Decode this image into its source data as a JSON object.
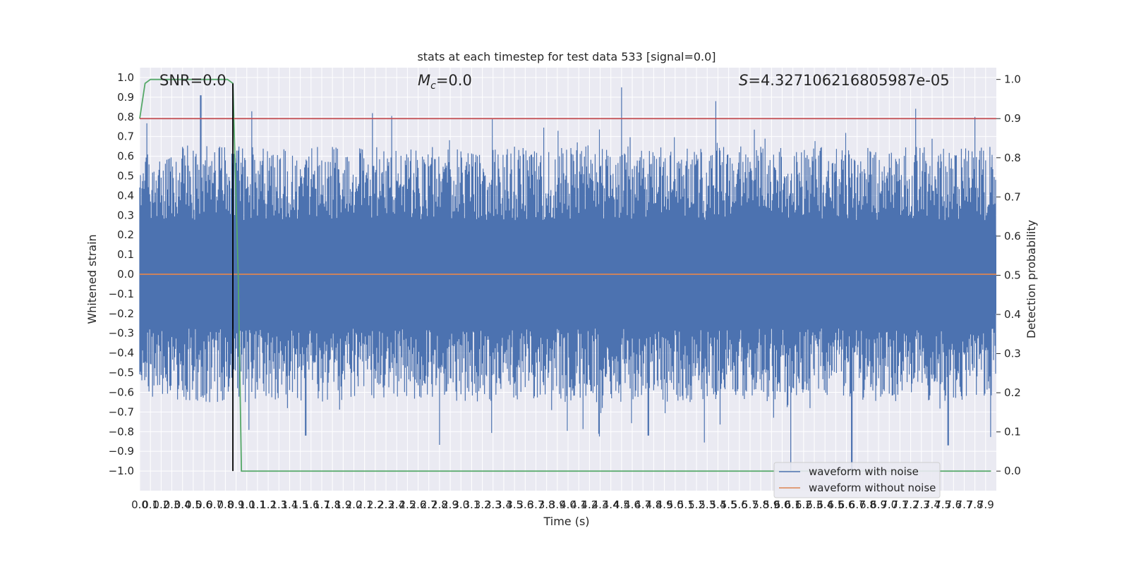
{
  "chart_data": {
    "type": "line",
    "title": "stats at each timestep for test data 533 [signal=0.0]",
    "xlabel": "Time (s)",
    "ylabel": "Whitened strain",
    "ylabel_right": "Detection probability",
    "xlim": [
      0,
      8.0
    ],
    "ylim": [
      -1.1,
      1.05
    ],
    "ylim_right": [
      -0.05,
      1.03
    ],
    "x_ticks": [
      0.0,
      0.1,
      0.2,
      0.3,
      0.4,
      0.5,
      0.6,
      0.7,
      0.8,
      0.9,
      1.0,
      1.1,
      1.2,
      1.3,
      1.4,
      1.5,
      1.6,
      1.7,
      1.8,
      1.9,
      2.0,
      2.1,
      2.2,
      2.3,
      2.4,
      2.5,
      2.6,
      2.7,
      2.8,
      2.9,
      3.0,
      3.1,
      3.2,
      3.3,
      3.4,
      3.5,
      3.6,
      3.7,
      3.8,
      3.9,
      4.0,
      4.1,
      4.2,
      4.3,
      4.4,
      4.5,
      4.6,
      4.7,
      4.8,
      4.9,
      5.0,
      5.1,
      5.2,
      5.3,
      5.4,
      5.5,
      5.6,
      5.7,
      5.8,
      5.9,
      6.0,
      6.1,
      6.2,
      6.3,
      6.4,
      6.5,
      6.6,
      6.7,
      6.8,
      6.9,
      7.0,
      7.1,
      7.2,
      7.3,
      7.4,
      7.5,
      7.6,
      7.7,
      7.8,
      7.9
    ],
    "y_ticks": [
      -1.0,
      -0.9,
      -0.8,
      -0.7,
      -0.6,
      -0.5,
      -0.4,
      -0.3,
      -0.2,
      -0.1,
      0.0,
      0.1,
      0.2,
      0.3,
      0.4,
      0.5,
      0.6,
      0.7,
      0.8,
      0.9,
      1.0
    ],
    "y_ticks_right": [
      0.0,
      0.1,
      0.2,
      0.3,
      0.4,
      0.5,
      0.6,
      0.7,
      0.8,
      0.9,
      1.0
    ],
    "grid": true,
    "legend_position": "lower-right",
    "annotations": [
      {
        "prefix": "SNR",
        "text": "=0.0",
        "italic": false
      },
      {
        "prefix": "M",
        "sub": "c",
        "text": "=0.0",
        "italic": true
      },
      {
        "prefix": "S",
        "text": "=4.327106216805987e-05",
        "italic": true
      }
    ],
    "series": [
      {
        "name": "waveform with noise",
        "color": "#4c72b0",
        "axis": "left",
        "description": "whitened noisy strain, oscillating roughly between -0.8 and 0.9 over 0–8 s",
        "envelope_hi_typical": 0.5,
        "envelope_lo_typical": -0.5,
        "notable_peaks": [
          [
            0.57,
            0.91
          ],
          [
            4.5,
            0.95
          ],
          [
            5.38,
            0.88
          ],
          [
            7.8,
            0.8
          ]
        ],
        "notable_troughs": [
          [
            1.55,
            -0.82
          ],
          [
            4.75,
            -0.82
          ],
          [
            6.08,
            -1.0
          ],
          [
            6.65,
            -1.0
          ],
          [
            7.55,
            -0.87
          ]
        ]
      },
      {
        "name": "waveform without noise",
        "color": "#dd8452",
        "axis": "left",
        "x": [
          0.0,
          8.0
        ],
        "y": [
          0.0,
          0.0
        ]
      },
      {
        "name": "",
        "color": "#55a868",
        "axis": "right",
        "x": [
          0.0,
          0.05,
          0.1,
          0.2,
          0.6,
          0.82,
          0.87,
          0.92,
          0.95,
          7.95
        ],
        "y": [
          0.9,
          0.99,
          1.0,
          1.0,
          1.0,
          1.0,
          0.99,
          0.5,
          0.0,
          0.0
        ]
      },
      {
        "name": "",
        "color": "#c44e52",
        "axis": "right",
        "x": [
          0.0,
          8.0
        ],
        "y": [
          0.9,
          0.9
        ]
      },
      {
        "name": "",
        "color": "#000000",
        "axis": "left",
        "kind": "vline",
        "x": 0.87,
        "y": [
          -1.0,
          0.97
        ]
      }
    ]
  }
}
